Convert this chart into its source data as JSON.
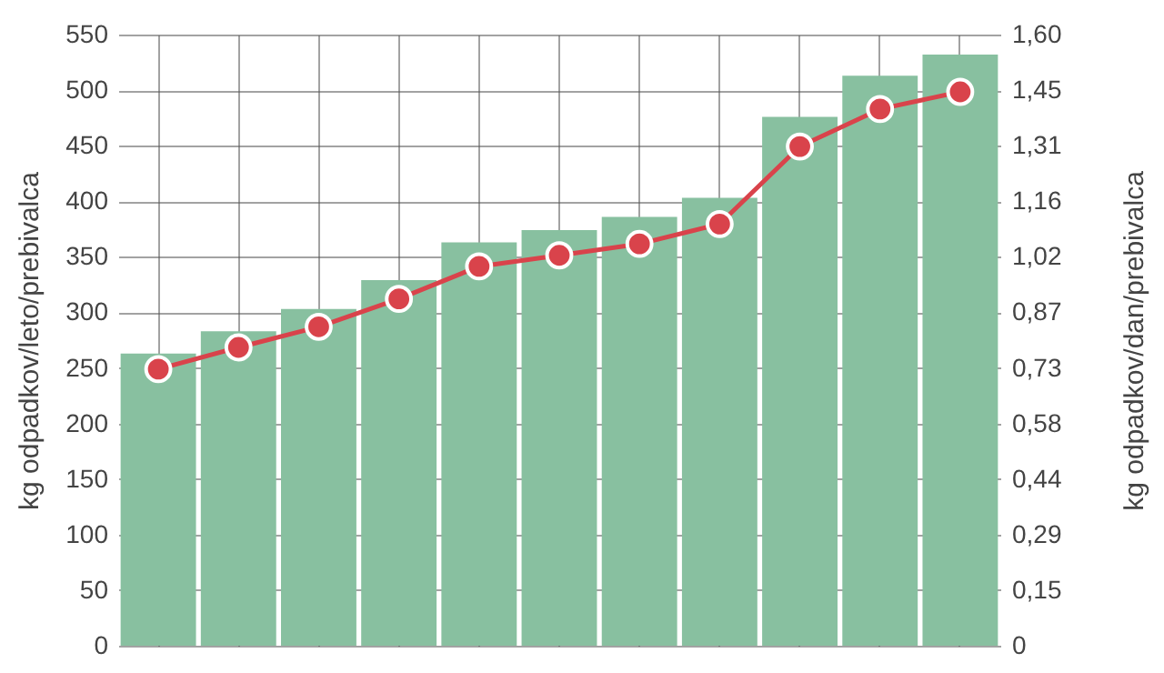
{
  "chart_data": {
    "type": "bar",
    "ylabel": "kg odpadkov/leto/prebivalca",
    "y2label": "kg odpadkov/dan/prebivalca",
    "categories": [
      null,
      null,
      null,
      null,
      null,
      null,
      null,
      null,
      null,
      null,
      null
    ],
    "series": [
      {
        "color": "#88c0a0",
        "values": [
          263,
          283,
          303,
          329,
          363,
          374,
          386,
          403,
          476,
          513,
          532
        ]
      },
      {
        "type": "line",
        "axis": "y2",
        "color": "#d9434b",
        "marker": "circle",
        "line_style": "solid",
        "values": [
          0.724,
          0.781,
          0.835,
          0.908,
          0.993,
          1.022,
          1.052,
          1.104,
          1.307,
          1.405,
          1.45
        ]
      }
    ],
    "ylim": [
      0,
      550
    ],
    "yticks": [
      0,
      50,
      100,
      150,
      200,
      250,
      300,
      350,
      400,
      450,
      500,
      550
    ],
    "y2lim": [
      0,
      1.6
    ],
    "y2ticks": [
      {
        "value": 0,
        "label": "0"
      },
      {
        "value": 0.145,
        "label": "0,15"
      },
      {
        "value": 0.291,
        "label": "0,29"
      },
      {
        "value": 0.436,
        "label": "0,44"
      },
      {
        "value": 0.582,
        "label": "0,58"
      },
      {
        "value": 0.727,
        "label": "0,73"
      },
      {
        "value": 0.873,
        "label": "0,87"
      },
      {
        "value": 1.018,
        "label": "1,02"
      },
      {
        "value": 1.164,
        "label": "1,16"
      },
      {
        "value": 1.309,
        "label": "1,31"
      },
      {
        "value": 1.455,
        "label": "1,45"
      },
      {
        "value": 1.6,
        "label": "1,60"
      }
    ],
    "grid": true
  }
}
